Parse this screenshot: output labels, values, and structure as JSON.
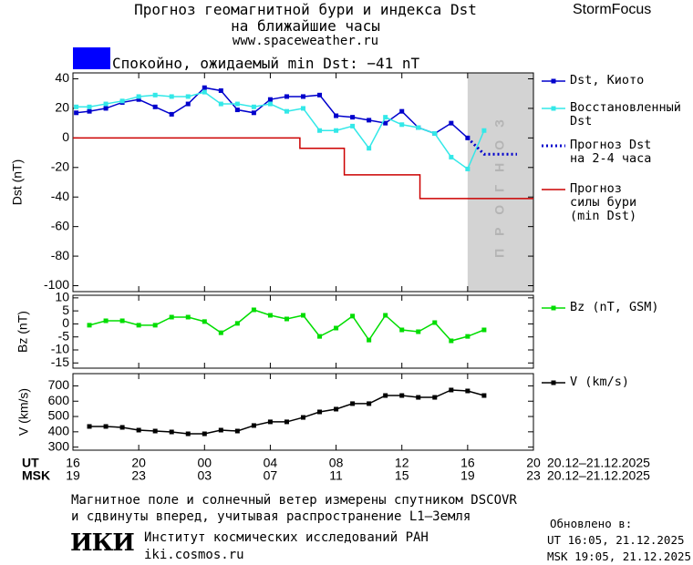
{
  "header": {
    "title": "Прогноз геомагнитной бури и индекса Dst\nна ближайшие часы",
    "url": "www.spaceweather.ru",
    "brand": "StormFocus",
    "status": "Спокойно, ожидаемый min Dst: −41 nT",
    "status_color": "#0000ff"
  },
  "chart_data": [
    {
      "type": "line",
      "ylabel": "Dst (nT)",
      "xlim": [
        16,
        44
      ],
      "xticks": [
        16,
        20,
        24,
        28,
        32,
        36,
        40,
        44
      ],
      "ylim": [
        -104,
        44
      ],
      "yticks": [
        40,
        20,
        0,
        -20,
        -40,
        -60,
        -80,
        -100
      ],
      "forecast_span": [
        40,
        44
      ],
      "forecast_color": "#d3d3d3",
      "forecast_label": "ПРОГНОЗ",
      "series": [
        {
          "name": "Dst, Киото",
          "color": "#0000cc",
          "markers": true,
          "x": [
            16.2,
            17,
            18,
            19,
            20,
            21,
            22,
            23,
            24,
            25,
            26,
            27,
            28,
            29,
            30,
            31,
            32,
            33,
            34,
            35,
            36,
            37,
            38,
            39,
            40
          ],
          "values": [
            17,
            18,
            20,
            24,
            26,
            21,
            16,
            23,
            34,
            32,
            19,
            17,
            26,
            28,
            28,
            29,
            15,
            14,
            12,
            10,
            18,
            7,
            3,
            10,
            0
          ]
        },
        {
          "name": "Восстановленный\nDst",
          "color": "#33e8e8",
          "markers": true,
          "x": [
            16.2,
            17,
            18,
            19,
            20,
            21,
            22,
            23,
            24,
            25,
            26,
            27,
            28,
            29,
            30,
            31,
            32,
            33,
            34,
            35,
            36,
            37,
            38,
            39,
            40,
            41
          ],
          "values": [
            21,
            21,
            23,
            25,
            28,
            29,
            28,
            28,
            31,
            23,
            23,
            21,
            23,
            18,
            20,
            5,
            5,
            8,
            -7,
            14,
            9,
            7,
            3,
            -13,
            -21,
            5
          ]
        },
        {
          "name": "Прогноз Dst\nна 2-4 часа",
          "color": "#0000cc",
          "dash": true,
          "x": [
            40,
            41,
            42,
            43
          ],
          "values": [
            0,
            -11,
            -11,
            -11
          ]
        },
        {
          "name": "Прогноз\nсилы бури\n(min Dst)",
          "color": "#cc0000",
          "x": [
            16,
            29.8,
            29.8,
            32.5,
            32.5,
            37.1,
            37.1,
            44
          ],
          "values": [
            0,
            0,
            -7,
            -7,
            -25,
            -25,
            -41,
            -41
          ]
        }
      ]
    },
    {
      "type": "line",
      "ylabel": "Bz (nT)",
      "xlim": [
        16,
        44
      ],
      "xticks": [
        16,
        20,
        24,
        28,
        32,
        36,
        40,
        44
      ],
      "ylim": [
        -17,
        11
      ],
      "yticks": [
        10,
        5,
        0,
        -5,
        -10,
        -15
      ],
      "series": [
        {
          "name": "Bz (nT, GSM)",
          "color": "#00dd00",
          "markers": true,
          "x": [
            17,
            18,
            19,
            20,
            21,
            22,
            23,
            24,
            25,
            26,
            27,
            28,
            29,
            30,
            31,
            32,
            33,
            34,
            35,
            36,
            37,
            38,
            39,
            40,
            41
          ],
          "values": [
            -0.5,
            1.2,
            1.2,
            -0.5,
            -0.5,
            2.6,
            2.6,
            0.9,
            -3.4,
            0.2,
            5.4,
            3.3,
            1.9,
            3.3,
            -4.8,
            -1.6,
            3,
            -6.2,
            3.3,
            -2.3,
            -3,
            0.5,
            -6.5,
            -4.8,
            -2.3
          ]
        }
      ]
    },
    {
      "type": "line",
      "ylabel": "V (km/s)",
      "xlabel": "UT",
      "x2label": "MSK",
      "x_range_label": "20.12–21.12.2025",
      "x2_range_label": "20.12–21.12.2025",
      "xlim": [
        16,
        44
      ],
      "xticks": [
        {
          "value": 16,
          "label": "16"
        },
        {
          "value": 20,
          "label": "20"
        },
        {
          "value": 24,
          "label": "00"
        },
        {
          "value": 28,
          "label": "04"
        },
        {
          "value": 32,
          "label": "08"
        },
        {
          "value": 36,
          "label": "12"
        },
        {
          "value": 40,
          "label": "16"
        },
        {
          "value": 44,
          "label": "20"
        }
      ],
      "x2ticks": [
        {
          "value": 16,
          "label": "19"
        },
        {
          "value": 20,
          "label": "23"
        },
        {
          "value": 24,
          "label": "03"
        },
        {
          "value": 28,
          "label": "07"
        },
        {
          "value": 32,
          "label": "11"
        },
        {
          "value": 36,
          "label": "15"
        },
        {
          "value": 40,
          "label": "19"
        },
        {
          "value": 44,
          "label": "23"
        }
      ],
      "ylim": [
        280,
        780
      ],
      "yticks": [
        300,
        400,
        500,
        600,
        700
      ],
      "series": [
        {
          "name": "V (km/s)",
          "color": "#000000",
          "markers": true,
          "x": [
            17,
            18,
            19,
            20,
            21,
            22,
            23,
            24,
            25,
            26,
            27,
            28,
            29,
            30,
            31,
            32,
            33,
            34,
            35,
            36,
            37,
            38,
            39,
            40,
            41
          ],
          "values": [
            435,
            435,
            429,
            411,
            405,
            399,
            387,
            387,
            411,
            405,
            441,
            465,
            465,
            494,
            530,
            548,
            584,
            584,
            637,
            637,
            625,
            625,
            673,
            667,
            637
          ]
        }
      ]
    }
  ],
  "footer": {
    "note": "Магнитное поле и солнечный ветер измерены спутником DSCOVR\nи сдвинуты вперед, учитывая распространение L1–Земля",
    "logo": "ИКИ",
    "institute": "Институт космических исследований РАН",
    "institute_url": "iki.cosmos.ru",
    "updated_title": "Обновлено в:",
    "updated_ut": "UT  16:05, 21.12.2025",
    "updated_msk": "MSK 19:05, 21.12.2025"
  }
}
